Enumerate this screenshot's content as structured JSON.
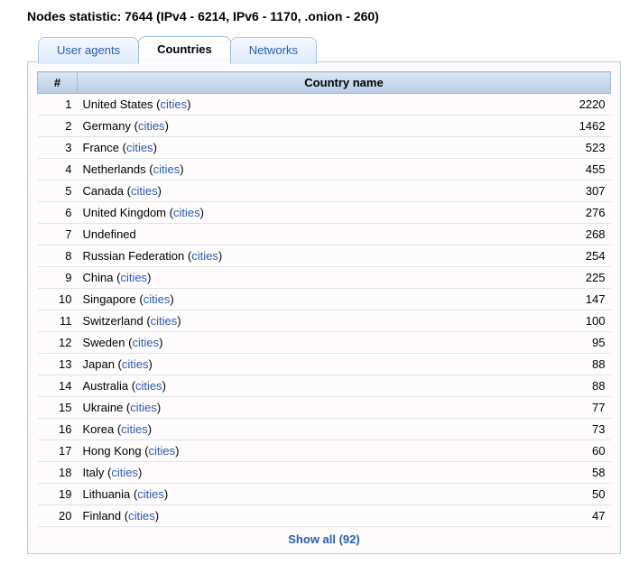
{
  "heading": "Nodes statistic: 7644 (IPv4 - 6214, IPv6 - 1170, .onion - 260)",
  "tabs": {
    "user_agents": "User agents",
    "countries": "Countries",
    "networks": "Networks"
  },
  "table": {
    "header_rank": "#",
    "header_name": "Country name",
    "cities_label": "cities",
    "rows": [
      {
        "rank": 1,
        "name": "United States",
        "has_cities": true,
        "count": 2220
      },
      {
        "rank": 2,
        "name": "Germany",
        "has_cities": true,
        "count": 1462
      },
      {
        "rank": 3,
        "name": "France",
        "has_cities": true,
        "count": 523
      },
      {
        "rank": 4,
        "name": "Netherlands",
        "has_cities": true,
        "count": 455
      },
      {
        "rank": 5,
        "name": "Canada",
        "has_cities": true,
        "count": 307
      },
      {
        "rank": 6,
        "name": "United Kingdom",
        "has_cities": true,
        "count": 276
      },
      {
        "rank": 7,
        "name": "Undefined",
        "has_cities": false,
        "count": 268
      },
      {
        "rank": 8,
        "name": "Russian Federation",
        "has_cities": true,
        "count": 254
      },
      {
        "rank": 9,
        "name": "China",
        "has_cities": true,
        "count": 225
      },
      {
        "rank": 10,
        "name": "Singapore",
        "has_cities": true,
        "count": 147
      },
      {
        "rank": 11,
        "name": "Switzerland",
        "has_cities": true,
        "count": 100
      },
      {
        "rank": 12,
        "name": "Sweden",
        "has_cities": true,
        "count": 95
      },
      {
        "rank": 13,
        "name": "Japan",
        "has_cities": true,
        "count": 88
      },
      {
        "rank": 14,
        "name": "Australia",
        "has_cities": true,
        "count": 88
      },
      {
        "rank": 15,
        "name": "Ukraine",
        "has_cities": true,
        "count": 77
      },
      {
        "rank": 16,
        "name": "Korea",
        "has_cities": true,
        "count": 73
      },
      {
        "rank": 17,
        "name": "Hong Kong",
        "has_cities": true,
        "count": 60
      },
      {
        "rank": 18,
        "name": "Italy",
        "has_cities": true,
        "count": 58
      },
      {
        "rank": 19,
        "name": "Lithuania",
        "has_cities": true,
        "count": 50
      },
      {
        "rank": 20,
        "name": "Finland",
        "has_cities": true,
        "count": 47
      }
    ]
  },
  "show_all": "Show all (92)"
}
